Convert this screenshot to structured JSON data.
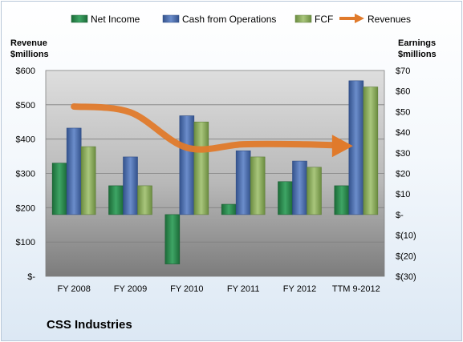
{
  "company_name": "CSS Industries",
  "colors": {
    "net_income": "#2e8a4e",
    "cash_from_operations": "#4f72b0",
    "fcf": "#8fb062",
    "revenues": "#e07a2b"
  },
  "chart_data": {
    "type": "bar",
    "categories": [
      "FY 2008",
      "FY 2009",
      "FY 2010",
      "FY 2011",
      "FY 2012",
      "TTM 9-2012"
    ],
    "left_axis": {
      "title_line1": "Revenue",
      "title_line2": "$millions",
      "ylim": [
        0,
        600
      ],
      "ticks": [
        "$-",
        "$100",
        "$200",
        "$300",
        "$400",
        "$500",
        "$600"
      ]
    },
    "right_axis": {
      "title_line1": "Earnings",
      "title_line2": "$millions",
      "ylim": [
        -30,
        70
      ],
      "ticks": [
        "$(30)",
        "$(20)",
        "$(10)",
        "$-",
        "$10",
        "$20",
        "$30",
        "$40",
        "$50",
        "$60",
        "$70"
      ]
    },
    "series": [
      {
        "name": "Net Income",
        "type": "bar",
        "axis": "right",
        "values": [
          25,
          14,
          -24,
          5,
          16,
          14
        ]
      },
      {
        "name": "Cash from Operations",
        "type": "bar",
        "axis": "right",
        "values": [
          42,
          28,
          48,
          31,
          26,
          65
        ]
      },
      {
        "name": "FCF",
        "type": "bar",
        "axis": "right",
        "values": [
          33,
          14,
          45,
          28,
          23,
          62
        ]
      },
      {
        "name": "Revenues",
        "type": "line",
        "axis": "left",
        "values": [
          495,
          478,
          375,
          385,
          385,
          380
        ]
      }
    ],
    "legend_position": "top",
    "grid": true
  }
}
